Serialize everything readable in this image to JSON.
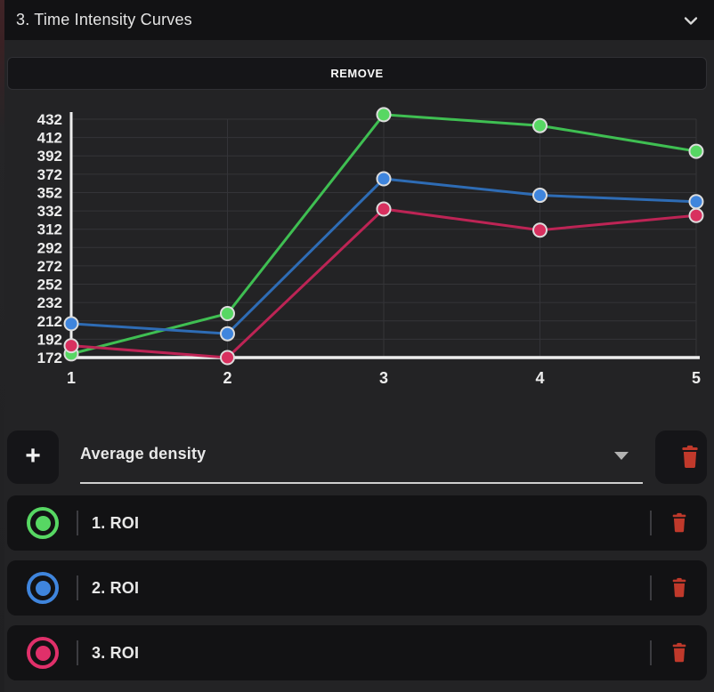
{
  "header": {
    "title": "3. Time Intensity Curves",
    "collapse_icon": "chevron-down-icon"
  },
  "remove_button": {
    "label": "REMOVE"
  },
  "chart_data": {
    "type": "line",
    "title": "",
    "xlabel": "",
    "ylabel": "",
    "x": [
      1,
      2,
      3,
      4,
      5
    ],
    "x_tick_labels": [
      "1",
      "2",
      "3",
      "4",
      "5"
    ],
    "y_ticks": [
      432,
      412,
      392,
      372,
      352,
      332,
      312,
      292,
      272,
      252,
      232,
      212,
      192,
      172
    ],
    "ylim": [
      172,
      432
    ],
    "grid": true,
    "legend_position": "none",
    "axis_color": "#ededed",
    "grid_color": "#343438",
    "tick_label_color": "#ededed",
    "point_stroke": "#dcdcdc",
    "series": [
      {
        "name": "1. ROI",
        "color": "#3fbf52",
        "point_color": "#57d763",
        "values": [
          176,
          220,
          437,
          425,
          397
        ]
      },
      {
        "name": "2. ROI",
        "color": "#2e6cb5",
        "point_color": "#3f85dd",
        "values": [
          209,
          198,
          367,
          349,
          342
        ]
      },
      {
        "name": "3. ROI",
        "color": "#bd2455",
        "point_color": "#d8305f",
        "values": [
          185,
          172,
          334,
          311,
          327
        ]
      }
    ]
  },
  "controls": {
    "add_button_label": "+",
    "add_icon": "plus-icon",
    "dropdown_value": "Average density",
    "caret_icon": "caret-down-icon",
    "delete_icon": "trash-icon"
  },
  "roi_list": [
    {
      "label": "1. ROI",
      "color": "#57d763"
    },
    {
      "label": "2. ROI",
      "color": "#3f85dd"
    },
    {
      "label": "3. ROI",
      "color": "#e0306a"
    }
  ],
  "colors": {
    "trash_red": "#c0392b",
    "panel_dark": "#121214",
    "page_background": "#232325"
  }
}
